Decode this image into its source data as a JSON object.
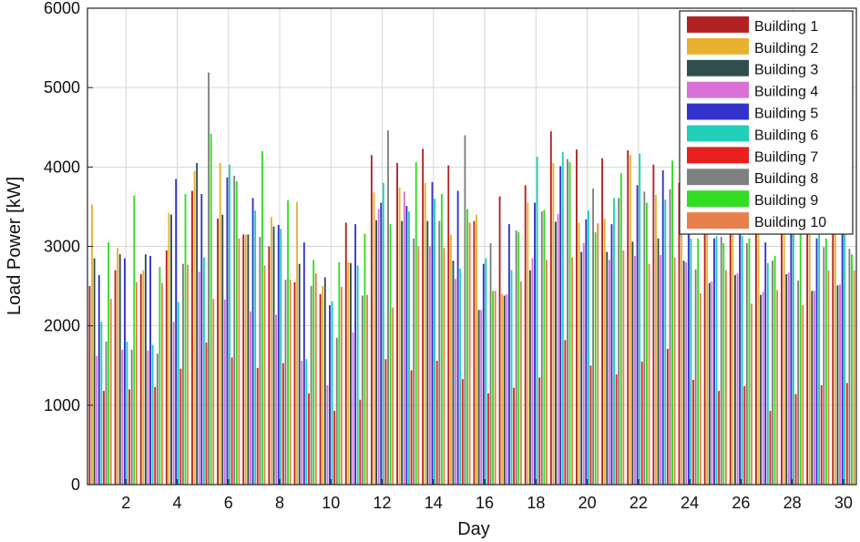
{
  "chart_data": {
    "type": "bar",
    "xlabel": "Day",
    "ylabel": "Load Power [kW]",
    "ylim": [
      0,
      6000
    ],
    "xlim": [
      0.5,
      30.5
    ],
    "grid": true,
    "legend_position": "top-right",
    "y_ticks": [
      0,
      1000,
      2000,
      3000,
      4000,
      5000,
      6000
    ],
    "x_ticks": [
      2,
      4,
      6,
      8,
      10,
      12,
      14,
      16,
      18,
      20,
      22,
      24,
      26,
      28,
      30
    ],
    "categories": [
      1,
      2,
      3,
      4,
      5,
      6,
      7,
      8,
      9,
      10,
      11,
      12,
      13,
      14,
      15,
      16,
      17,
      18,
      19,
      20,
      21,
      22,
      23,
      24,
      25,
      26,
      27,
      28,
      29,
      30
    ],
    "series": [
      {
        "name": "Building 1",
        "color": "#B22222",
        "values": [
          2500,
          2700,
          2650,
          2950,
          3700,
          3350,
          3150,
          3000,
          2550,
          2400,
          3300,
          4150,
          4050,
          4230,
          4020,
          3320,
          3630,
          3770,
          4450,
          4220,
          4110,
          4210,
          4030,
          3800,
          3650,
          3700,
          3650,
          3600,
          3600,
          3560
        ]
      },
      {
        "name": "Building 2",
        "color": "#E8B130",
        "values": [
          3530,
          2980,
          2700,
          3420,
          3950,
          4050,
          3150,
          3370,
          3560,
          2500,
          2800,
          3680,
          3740,
          3800,
          3150,
          3400,
          2400,
          3550,
          4050,
          3300,
          3350,
          4150,
          3650,
          3550,
          3600,
          3650,
          3700,
          3650,
          3700,
          3800
        ]
      },
      {
        "name": "Building 3",
        "color": "#2F4F4F",
        "values": [
          2850,
          2900,
          2900,
          3400,
          4050,
          3400,
          3150,
          3250,
          2780,
          2610,
          2790,
          3330,
          3320,
          3320,
          2820,
          2200,
          2380,
          2700,
          3310,
          2930,
          2930,
          3060,
          3100,
          2820,
          2540,
          2640,
          2390,
          2650,
          2440,
          2510
        ]
      },
      {
        "name": "Building 4",
        "color": "#DA70D6",
        "values": [
          1620,
          1700,
          1690,
          2050,
          2680,
          2330,
          2180,
          2140,
          1560,
          1250,
          1920,
          3470,
          3690,
          3000,
          2590,
          2200,
          2400,
          2850,
          3410,
          3040,
          2830,
          2880,
          2890,
          2800,
          2560,
          2660,
          2430,
          2670,
          2440,
          2520
        ]
      },
      {
        "name": "Building 5",
        "color": "#3333CC",
        "values": [
          2640,
          2850,
          2880,
          3850,
          3660,
          3870,
          3610,
          3270,
          3050,
          2260,
          3280,
          3550,
          3510,
          3810,
          3700,
          2780,
          3280,
          3550,
          4010,
          3340,
          3280,
          3770,
          3960,
          3500,
          3100,
          3400,
          3050,
          3330,
          3100,
          3270
        ]
      },
      {
        "name": "Building 6",
        "color": "#20D0B8",
        "values": [
          2050,
          1800,
          1760,
          2300,
          2860,
          4030,
          3450,
          3220,
          1580,
          2310,
          2760,
          3800,
          3440,
          3600,
          2720,
          2850,
          2700,
          4130,
          4190,
          3450,
          3610,
          4170,
          3590,
          3100,
          3130,
          3130,
          2790,
          3460,
          3200,
          3380
        ]
      },
      {
        "name": "Building 7",
        "color": "#E82020",
        "values": [
          1180,
          1200,
          1230,
          1460,
          1790,
          1600,
          1470,
          1530,
          1150,
          930,
          1070,
          1580,
          1440,
          1560,
          1330,
          1150,
          1220,
          1350,
          1820,
          1500,
          1390,
          1550,
          1710,
          1320,
          1180,
          1240,
          930,
          1140,
          1250,
          1280
        ]
      },
      {
        "name": "Building 8",
        "color": "#808080",
        "values": [
          1800,
          1700,
          1650,
          2780,
          5190,
          3890,
          3120,
          2580,
          2500,
          1850,
          2380,
          4460,
          3100,
          3320,
          4400,
          3040,
          3200,
          3440,
          4100,
          3730,
          3610,
          3690,
          3720,
          2710,
          3120,
          3040,
          2820,
          2570,
          2990,
          2970
        ]
      },
      {
        "name": "Building 9",
        "color": "#33DD22",
        "values": [
          3050,
          3640,
          2740,
          3660,
          4420,
          3820,
          4200,
          3580,
          2830,
          2800,
          3160,
          3280,
          4060,
          3660,
          3470,
          2440,
          3180,
          3460,
          4060,
          3180,
          3920,
          3550,
          4080,
          3100,
          3040,
          3100,
          2880,
          3230,
          3100,
          2900
        ]
      },
      {
        "name": "Building 10",
        "color": "#E8804E",
        "values": [
          2340,
          2550,
          2540,
          2770,
          2340,
          3100,
          2760,
          2580,
          2660,
          2490,
          2390,
          2230,
          3000,
          2980,
          3300,
          2440,
          2560,
          2830,
          2860,
          3290,
          2950,
          2780,
          2860,
          2410,
          2700,
          2280,
          2450,
          2260,
          2700,
          2700
        ]
      }
    ]
  }
}
